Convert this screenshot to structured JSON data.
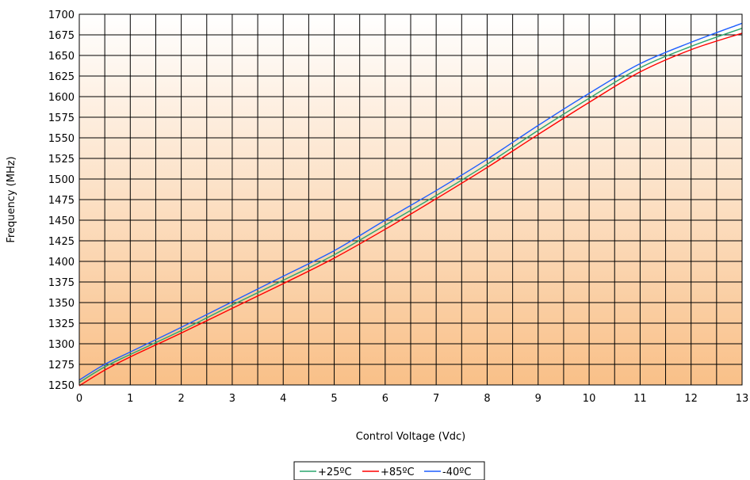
{
  "chart_data": {
    "type": "line",
    "xlabel": "Control Voltage (Vdc)",
    "ylabel": "Frequency   (MHz)",
    "xlim": [
      0,
      13
    ],
    "ylim": [
      1250,
      1700
    ],
    "x_ticks": [
      0,
      1,
      2,
      3,
      4,
      5,
      6,
      7,
      8,
      9,
      10,
      11,
      12,
      13
    ],
    "y_ticks": [
      1250,
      1275,
      1300,
      1325,
      1350,
      1375,
      1400,
      1425,
      1450,
      1475,
      1500,
      1525,
      1550,
      1575,
      1600,
      1625,
      1650,
      1675,
      1700
    ],
    "grid": true,
    "legend_position": "bottom",
    "background": "gradient-white-to-orange",
    "series": [
      {
        "name": "+25ºC",
        "color": "#2aa66f",
        "x": [
          0,
          0.5,
          1,
          2,
          3,
          4,
          5,
          6,
          7,
          8,
          9,
          10,
          11,
          12,
          13
        ],
        "y": [
          1253,
          1272,
          1287,
          1316,
          1347,
          1377,
          1408,
          1444,
          1480,
          1518,
          1559,
          1598,
          1635,
          1661,
          1683
        ]
      },
      {
        "name": "+85ºC",
        "color": "#ff0000",
        "x": [
          0,
          0.5,
          1,
          2,
          3,
          4,
          5,
          6,
          7,
          8,
          9,
          10,
          11,
          12,
          13
        ],
        "y": [
          1249,
          1268,
          1284,
          1313,
          1343,
          1373,
          1404,
          1439,
          1476,
          1514,
          1554,
          1593,
          1630,
          1657,
          1677
        ]
      },
      {
        "name": "-40ºC",
        "color": "#1f5fff",
        "x": [
          0,
          0.5,
          1,
          2,
          3,
          4,
          5,
          6,
          7,
          8,
          9,
          10,
          11,
          12,
          13
        ],
        "y": [
          1256,
          1275,
          1290,
          1320,
          1351,
          1382,
          1413,
          1450,
          1486,
          1524,
          1565,
          1604,
          1640,
          1666,
          1689
        ]
      }
    ]
  }
}
